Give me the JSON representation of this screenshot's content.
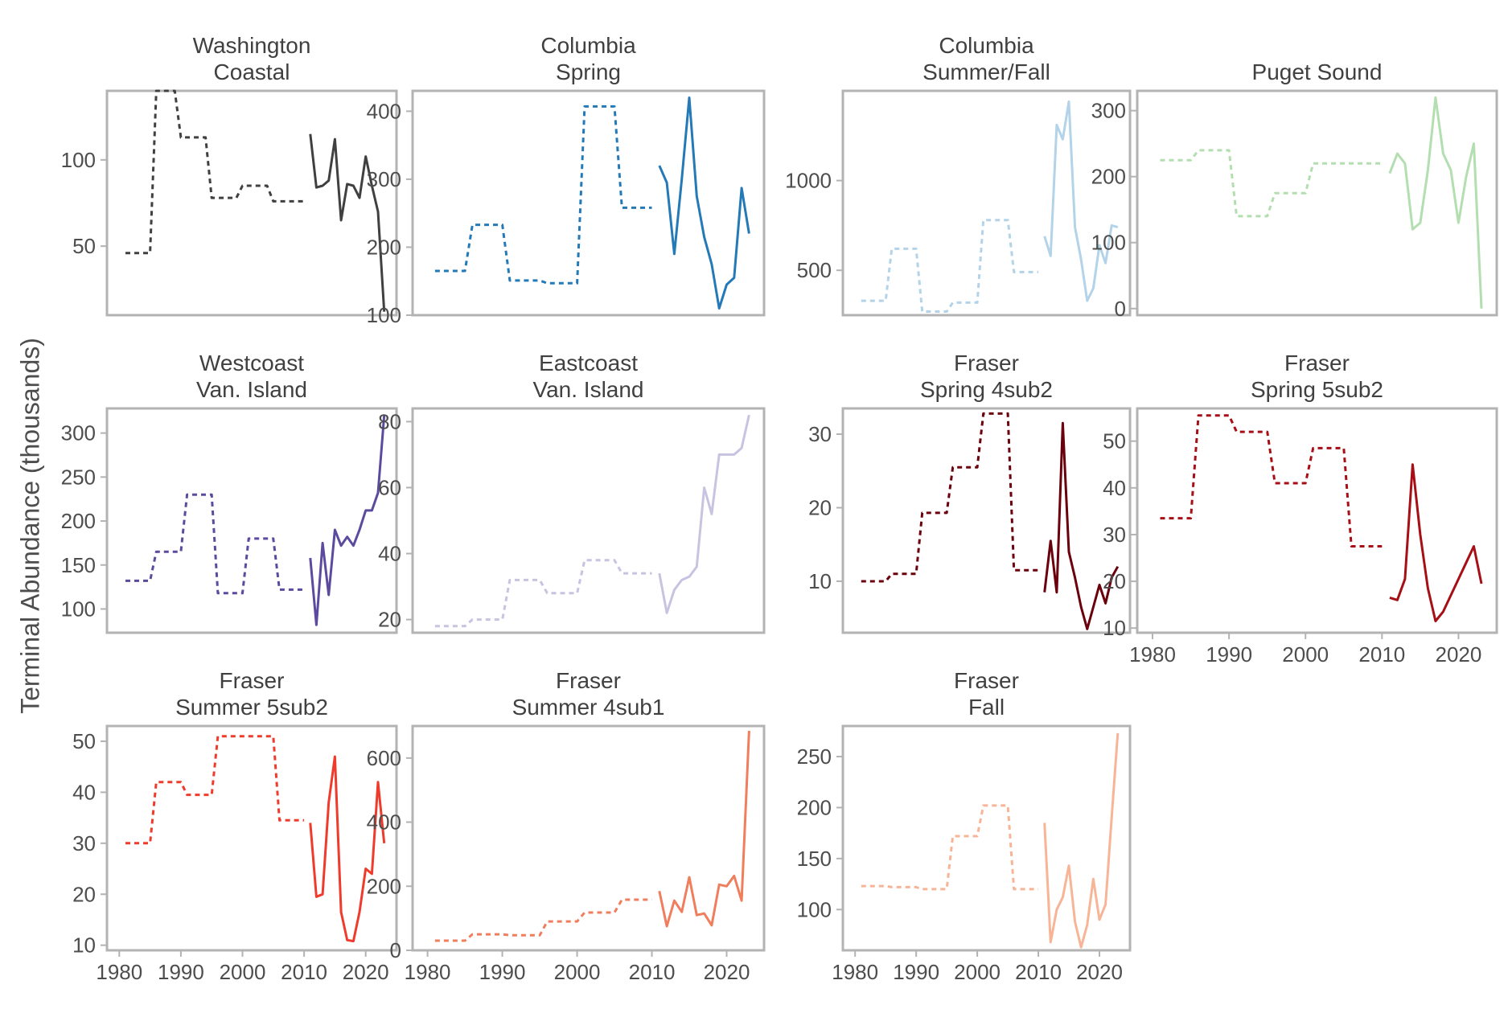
{
  "figure": {
    "ylabel": "Terminal Abundance (thousands)",
    "xlim": [
      1978,
      2025
    ],
    "xticks": [
      1980,
      1990,
      2000,
      2010,
      2020
    ],
    "legend": "none",
    "grid": false,
    "line_styles": {
      "dashed": "1981-2011 period means",
      "solid": "2011-2023 annual"
    }
  },
  "chart_data": [
    {
      "type": "line",
      "title": "Washington\nCoastal",
      "color": "#404040",
      "ylim": [
        10,
        140
      ],
      "yticks": [
        50,
        100
      ],
      "x_axis_labels": false,
      "series": [
        {
          "style": "dashed",
          "x": [
            1981,
            1985,
            1986,
            1989,
            1990,
            1994,
            1995,
            1999,
            2000,
            2004,
            2005,
            2008,
            2009,
            2010
          ],
          "y": [
            46,
            46,
            140,
            140,
            113,
            113,
            78,
            78,
            85,
            85,
            76,
            76,
            76,
            76
          ]
        },
        {
          "style": "solid",
          "x": [
            2011,
            2012,
            2013,
            2014,
            2015,
            2016,
            2017,
            2018,
            2019,
            2020,
            2021,
            2022,
            2023
          ],
          "y": [
            115,
            84,
            85,
            88,
            112,
            65,
            86,
            85,
            78,
            102,
            85,
            70,
            12
          ]
        }
      ]
    },
    {
      "type": "line",
      "title": "Columbia\nSpring",
      "color": "#2479b7",
      "ylim": [
        100,
        430
      ],
      "yticks": [
        100,
        200,
        300,
        400
      ],
      "x_axis_labels": false,
      "series": [
        {
          "style": "dashed",
          "x": [
            1981,
            1985,
            1986,
            1990,
            1991,
            1995,
            1996,
            2000,
            2001,
            2005,
            2006,
            2010
          ],
          "y": [
            165,
            165,
            233,
            233,
            151,
            151,
            147,
            147,
            407,
            407,
            258,
            258
          ]
        },
        {
          "style": "solid",
          "x": [
            2011,
            2012,
            2013,
            2014,
            2015,
            2016,
            2017,
            2018,
            2019,
            2020,
            2021,
            2022,
            2023
          ],
          "y": [
            320,
            295,
            190,
            300,
            420,
            275,
            215,
            175,
            110,
            145,
            155,
            287,
            220
          ]
        }
      ]
    },
    {
      "type": "line",
      "title": "Columbia\nSummer/Fall",
      "color": "#b3d3e8",
      "ylim": [
        250,
        1500
      ],
      "yticks": [
        500,
        1000
      ],
      "x_axis_labels": false,
      "series": [
        {
          "style": "dashed",
          "x": [
            1981,
            1985,
            1986,
            1990,
            1991,
            1995,
            1996,
            2000,
            2001,
            2005,
            2006,
            2010
          ],
          "y": [
            330,
            330,
            620,
            620,
            270,
            270,
            320,
            320,
            780,
            780,
            490,
            490
          ]
        },
        {
          "style": "solid",
          "x": [
            2011,
            2012,
            2013,
            2014,
            2015,
            2016,
            2017,
            2018,
            2019,
            2020,
            2021,
            2022,
            2023
          ],
          "y": [
            690,
            580,
            1310,
            1230,
            1440,
            740,
            560,
            330,
            400,
            640,
            540,
            750,
            740
          ]
        }
      ]
    },
    {
      "type": "line",
      "title": "Puget Sound",
      "color": "#b3deb0",
      "ylim": [
        -10,
        330
      ],
      "yticks": [
        0,
        100,
        200,
        300
      ],
      "x_axis_labels": false,
      "series": [
        {
          "style": "dashed",
          "x": [
            1981,
            1985,
            1986,
            1990,
            1991,
            1995,
            1996,
            2000,
            2001,
            2005,
            2006,
            2010
          ],
          "y": [
            225,
            225,
            240,
            240,
            140,
            140,
            175,
            175,
            220,
            220,
            220,
            220
          ]
        },
        {
          "style": "solid",
          "x": [
            2011,
            2012,
            2013,
            2014,
            2015,
            2016,
            2017,
            2018,
            2019,
            2020,
            2021,
            2022,
            2023
          ],
          "y": [
            205,
            235,
            220,
            120,
            130,
            210,
            320,
            235,
            210,
            130,
            200,
            250,
            0
          ]
        }
      ]
    },
    {
      "type": "line",
      "title": "Westcoast\nVan. Island",
      "color": "#5c4a9e",
      "ylim": [
        73,
        328
      ],
      "yticks": [
        100,
        150,
        200,
        250,
        300
      ],
      "x_axis_labels": false,
      "series": [
        {
          "style": "dashed",
          "x": [
            1981,
            1985,
            1986,
            1990,
            1991,
            1995,
            1996,
            2000,
            2001,
            2005,
            2006,
            2010
          ],
          "y": [
            132,
            132,
            165,
            165,
            230,
            230,
            118,
            118,
            180,
            180,
            122,
            122
          ]
        },
        {
          "style": "solid",
          "x": [
            2011,
            2012,
            2013,
            2014,
            2015,
            2016,
            2017,
            2018,
            2019,
            2020,
            2021,
            2022,
            2023
          ],
          "y": [
            158,
            82,
            175,
            116,
            190,
            172,
            182,
            172,
            190,
            212,
            212,
            232,
            320
          ]
        }
      ]
    },
    {
      "type": "line",
      "title": "Eastcoast\nVan. Island",
      "color": "#c7c3e0",
      "ylim": [
        16,
        84
      ],
      "yticks": [
        20,
        40,
        60,
        80
      ],
      "x_axis_labels": false,
      "series": [
        {
          "style": "dashed",
          "x": [
            1981,
            1985,
            1986,
            1990,
            1991,
            1995,
            1996,
            2000,
            2001,
            2005,
            2006,
            2010
          ],
          "y": [
            18,
            18,
            20,
            20,
            32,
            32,
            28,
            28,
            38,
            38,
            34,
            34
          ]
        },
        {
          "style": "solid",
          "x": [
            2011,
            2012,
            2013,
            2014,
            2015,
            2016,
            2017,
            2018,
            2019,
            2020,
            2021,
            2022,
            2023
          ],
          "y": [
            34,
            22,
            29,
            32,
            33,
            36,
            60,
            52,
            70,
            70,
            70,
            72,
            82
          ]
        }
      ]
    },
    {
      "type": "line",
      "title": "Fraser\nSpring 4sub2",
      "color": "#6b000d",
      "ylim": [
        3,
        33.5
      ],
      "yticks": [
        10,
        20,
        30
      ],
      "x_axis_labels": false,
      "series": [
        {
          "style": "dashed",
          "x": [
            1981,
            1985,
            1986,
            1990,
            1991,
            1995,
            1996,
            2000,
            2001,
            2005,
            2006,
            2010
          ],
          "y": [
            10,
            10,
            11,
            11,
            19.3,
            19.3,
            25.5,
            25.5,
            32.8,
            32.8,
            11.5,
            11.5
          ]
        },
        {
          "style": "solid",
          "x": [
            2011,
            2012,
            2013,
            2014,
            2015,
            2016,
            2017,
            2018,
            2019,
            2020,
            2021,
            2022,
            2023
          ],
          "y": [
            8.5,
            15.5,
            8.5,
            31.5,
            14,
            10.5,
            6.5,
            3.5,
            6.5,
            9.5,
            7,
            10.5,
            12
          ]
        }
      ]
    },
    {
      "type": "line",
      "title": "Fraser\nSpring 5sub2",
      "color": "#a50f15",
      "ylim": [
        9,
        57
      ],
      "yticks": [
        10,
        20,
        30,
        40,
        50
      ],
      "x_axis_labels": true,
      "series": [
        {
          "style": "dashed",
          "x": [
            1981,
            1985,
            1986,
            1990,
            1991,
            1995,
            1996,
            2000,
            2001,
            2005,
            2006,
            2010
          ],
          "y": [
            33.5,
            33.5,
            55.5,
            55.5,
            52,
            52,
            41,
            41,
            48.5,
            48.5,
            27.5,
            27.5
          ]
        },
        {
          "style": "solid",
          "x": [
            2011,
            2012,
            2013,
            2014,
            2015,
            2016,
            2017,
            2018,
            2019,
            2020,
            2021,
            2022,
            2023
          ],
          "y": [
            16.5,
            16,
            20.5,
            45,
            30,
            18.5,
            11.5,
            13.5,
            17,
            20.5,
            24,
            27.5,
            19.5
          ]
        }
      ]
    },
    {
      "type": "line",
      "title": "Fraser\nSummer 5sub2",
      "color": "#ef3b2c",
      "ylim": [
        9,
        53
      ],
      "yticks": [
        10,
        20,
        30,
        40,
        50
      ],
      "x_axis_labels": true,
      "series": [
        {
          "style": "dashed",
          "x": [
            1981,
            1985,
            1986,
            1990,
            1991,
            1995,
            1996,
            2000,
            2001,
            2005,
            2006,
            2010
          ],
          "y": [
            30,
            30,
            42,
            42,
            39.5,
            39.5,
            51,
            51,
            51,
            51,
            34.5,
            34.5
          ]
        },
        {
          "style": "solid",
          "x": [
            2011,
            2012,
            2013,
            2014,
            2015,
            2016,
            2017,
            2018,
            2019,
            2020,
            2021,
            2022,
            2023
          ],
          "y": [
            34,
            19.5,
            20,
            38,
            47,
            16.5,
            11,
            10.8,
            16.5,
            25,
            24,
            42,
            30
          ]
        }
      ]
    },
    {
      "type": "line",
      "title": "Fraser\nSummer 4sub1",
      "color": "#f07e5c",
      "ylim": [
        0,
        700
      ],
      "yticks": [
        0,
        200,
        400,
        600
      ],
      "x_axis_labels": true,
      "series": [
        {
          "style": "dashed",
          "x": [
            1981,
            1985,
            1986,
            1990,
            1991,
            1995,
            1996,
            2000,
            2001,
            2005,
            2006,
            2010
          ],
          "y": [
            30,
            30,
            50,
            50,
            47,
            47,
            90,
            90,
            118,
            118,
            158,
            158
          ]
        },
        {
          "style": "solid",
          "x": [
            2011,
            2012,
            2013,
            2014,
            2015,
            2016,
            2017,
            2018,
            2019,
            2020,
            2021,
            2022,
            2023
          ],
          "y": [
            185,
            75,
            155,
            120,
            228,
            110,
            115,
            78,
            205,
            200,
            232,
            155,
            685
          ]
        }
      ]
    },
    {
      "type": "line",
      "title": "Fraser\nFall",
      "color": "#f8b497",
      "ylim": [
        60,
        280
      ],
      "yticks": [
        100,
        150,
        200,
        250
      ],
      "x_axis_labels": true,
      "series": [
        {
          "style": "dashed",
          "x": [
            1981,
            1985,
            1986,
            1990,
            1991,
            1995,
            1996,
            2000,
            2001,
            2005,
            2006,
            2010
          ],
          "y": [
            123,
            123,
            122,
            122,
            120,
            120,
            172,
            172,
            202,
            202,
            120,
            120
          ]
        },
        {
          "style": "solid",
          "x": [
            2011,
            2012,
            2013,
            2014,
            2015,
            2016,
            2017,
            2018,
            2019,
            2020,
            2021,
            2022,
            2023
          ],
          "y": [
            185,
            68,
            100,
            112,
            143,
            88,
            63,
            85,
            130,
            90,
            105,
            190,
            273
          ]
        }
      ]
    }
  ]
}
